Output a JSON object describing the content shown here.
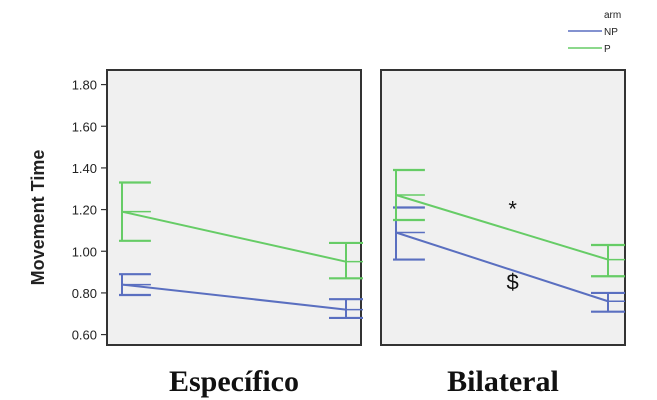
{
  "chart_data": {
    "type": "line",
    "ylabel": "Movement Time",
    "ylim": [
      0.55,
      1.87
    ],
    "yticks": [
      "0.60",
      "0.80",
      "1.00",
      "1.20",
      "1.40",
      "1.60",
      "1.80"
    ],
    "ytick_values": [
      0.6,
      0.8,
      1.0,
      1.2,
      1.4,
      1.6,
      1.8
    ],
    "legend": {
      "title": "arm",
      "entries": [
        "NP",
        "P"
      ],
      "placement": "top-right"
    },
    "colors": {
      "NP": "#5a6fc0",
      "P": "#66cc66",
      "panel_bg": "#f0f0f0",
      "frame": "#333333"
    },
    "panels": [
      {
        "title": "Específico",
        "series": [
          {
            "name": "NP",
            "values": [
              0.84,
              0.72
            ],
            "ci_low": [
              0.79,
              0.68
            ],
            "ci_high": [
              0.89,
              0.77
            ]
          },
          {
            "name": "P",
            "values": [
              1.19,
              0.95
            ],
            "ci_low": [
              1.05,
              0.87
            ],
            "ci_high": [
              1.33,
              1.04
            ]
          }
        ],
        "annotations": []
      },
      {
        "title": "Bilateral",
        "series": [
          {
            "name": "NP",
            "values": [
              1.09,
              0.76
            ],
            "ci_low": [
              0.96,
              0.71
            ],
            "ci_high": [
              1.21,
              0.8
            ]
          },
          {
            "name": "P",
            "values": [
              1.27,
              0.96
            ],
            "ci_low": [
              1.15,
              0.88
            ],
            "ci_high": [
              1.39,
              1.03
            ]
          }
        ],
        "annotations": [
          {
            "text": "*",
            "x": 0.55,
            "y": 1.2
          },
          {
            "text": "$",
            "x": 0.55,
            "y": 0.85
          }
        ]
      }
    ]
  }
}
